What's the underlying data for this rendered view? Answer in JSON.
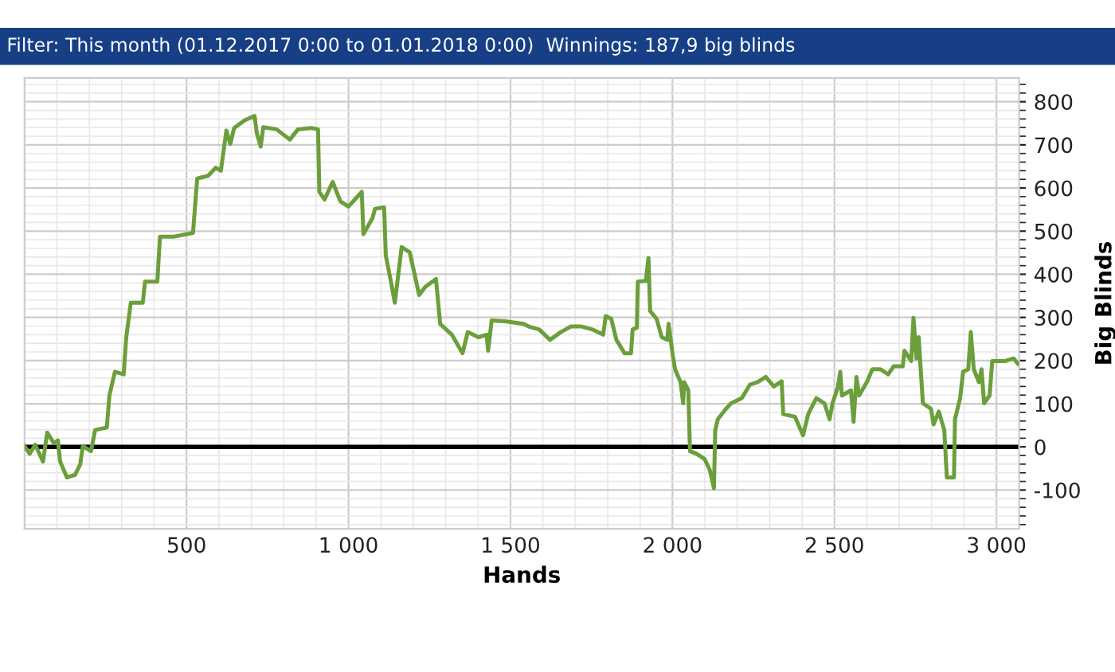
{
  "chart_data": {
    "type": "line",
    "title": "Filter: This month (01.12.2017 0:00 to 01.01.2018 0:00)  Winnings: 187,9 big blinds",
    "xlabel": "Hands",
    "ylabel": "Big Blinds",
    "series": [
      {
        "color": "#6b9f3c",
        "x": [
          0,
          16,
          33,
          57,
          70,
          90,
          103,
          110,
          131,
          156,
          172,
          180,
          205,
          218,
          254,
          262,
          279,
          306,
          314,
          328,
          365,
          372,
          410,
          418,
          459,
          500,
          520,
          533,
          566,
          590,
          606,
          623,
          635,
          647,
          680,
          710,
          717,
          729,
          737,
          778,
          819,
          844,
          885,
          906,
          910,
          926,
          951,
          975,
          1000,
          1041,
          1046,
          1074,
          1082,
          1110,
          1115,
          1131,
          1143,
          1164,
          1189,
          1218,
          1237,
          1270,
          1283,
          1319,
          1352,
          1368,
          1401,
          1426,
          1431,
          1442,
          1483,
          1540,
          1556,
          1589,
          1622,
          1655,
          1687,
          1720,
          1753,
          1786,
          1794,
          1811,
          1827,
          1852,
          1872,
          1877,
          1890,
          1893,
          1918,
          1926,
          1931,
          1951,
          1967,
          1984,
          1988,
          2000,
          2008,
          2025,
          2033,
          2036,
          2049,
          2054,
          2074,
          2099,
          2115,
          2128,
          2132,
          2140,
          2165,
          2181,
          2214,
          2239,
          2263,
          2288,
          2313,
          2337,
          2342,
          2378,
          2403,
          2419,
          2444,
          2469,
          2485,
          2494,
          2510,
          2518,
          2523,
          2551,
          2559,
          2568,
          2576,
          2600,
          2617,
          2642,
          2666,
          2683,
          2711,
          2716,
          2737,
          2744,
          2753,
          2760,
          2773,
          2798,
          2806,
          2822,
          2839,
          2847,
          2869,
          2872,
          2888,
          2897,
          2913,
          2921,
          2930,
          2946,
          2954,
          2962,
          2979,
          2987,
          3028,
          3053,
          3066
        ],
        "values": [
          2,
          -16,
          5,
          -34,
          33,
          9,
          15,
          -34,
          -71,
          -65,
          -40,
          2,
          -10,
          39,
          45,
          119,
          174,
          168,
          254,
          334,
          334,
          383,
          383,
          487,
          487,
          493,
          496,
          622,
          628,
          647,
          640,
          733,
          702,
          739,
          757,
          767,
          727,
          696,
          741,
          736,
          712,
          736,
          739,
          736,
          591,
          573,
          614,
          569,
          557,
          591,
          493,
          530,
          552,
          555,
          444,
          383,
          334,
          463,
          451,
          352,
          371,
          389,
          285,
          260,
          217,
          266,
          254,
          260,
          223,
          293,
          291,
          285,
          279,
          272,
          248,
          266,
          279,
          279,
          272,
          260,
          303,
          297,
          248,
          217,
          217,
          272,
          276,
          383,
          385,
          438,
          315,
          297,
          254,
          248,
          285,
          217,
          180,
          150,
          101,
          150,
          131,
          -10,
          -16,
          -28,
          -53,
          -96,
          39,
          64,
          88,
          101,
          113,
          144,
          150,
          162,
          140,
          152,
          76,
          70,
          27,
          76,
          113,
          101,
          64,
          101,
          137,
          174,
          119,
          131,
          58,
          162,
          119,
          150,
          180,
          180,
          168,
          187,
          187,
          223,
          199,
          299,
          205,
          254,
          101,
          88,
          52,
          82,
          39,
          -71,
          -71,
          64,
          113,
          174,
          180,
          266,
          180,
          150,
          180,
          101,
          119,
          199,
          199,
          205,
          193
        ]
      }
    ],
    "xlim": [
      0,
      3070
    ],
    "ylim": [
      -190,
      855
    ],
    "xticks": [
      500,
      {
        "value": 1000,
        "label": "1 000"
      },
      {
        "value": 1500,
        "label": "1 500"
      },
      {
        "value": 2000,
        "label": "2 000"
      },
      {
        "value": 2500,
        "label": "2 500"
      },
      {
        "value": 3000,
        "label": "3 000"
      }
    ],
    "yticks": [
      -100,
      0,
      100,
      200,
      300,
      400,
      500,
      600,
      700,
      800
    ],
    "ref_lines": [
      {
        "axis": "y",
        "value": 0,
        "color": "#000000"
      }
    ],
    "grid": true
  }
}
